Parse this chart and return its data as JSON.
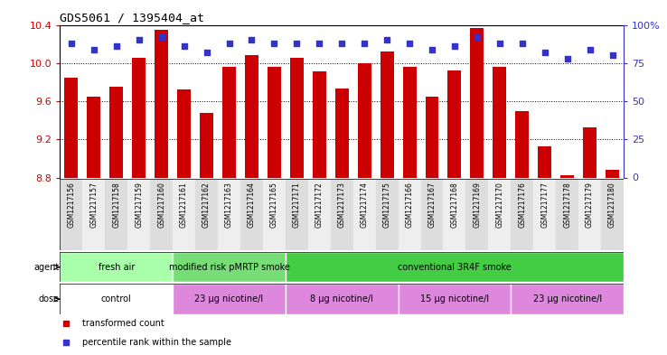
{
  "title": "GDS5061 / 1395404_at",
  "samples": [
    "GSM1217156",
    "GSM1217157",
    "GSM1217158",
    "GSM1217159",
    "GSM1217160",
    "GSM1217161",
    "GSM1217162",
    "GSM1217163",
    "GSM1217164",
    "GSM1217165",
    "GSM1217171",
    "GSM1217172",
    "GSM1217173",
    "GSM1217174",
    "GSM1217175",
    "GSM1217166",
    "GSM1217167",
    "GSM1217168",
    "GSM1217169",
    "GSM1217170",
    "GSM1217176",
    "GSM1217177",
    "GSM1217178",
    "GSM1217179",
    "GSM1217180"
  ],
  "bar_values": [
    9.85,
    9.65,
    9.75,
    10.05,
    10.35,
    9.72,
    9.48,
    9.96,
    10.08,
    9.96,
    10.05,
    9.91,
    9.73,
    10.0,
    10.12,
    9.96,
    9.65,
    9.92,
    10.37,
    9.96,
    9.5,
    9.13,
    8.82,
    9.33,
    8.88
  ],
  "percentile_values": [
    88,
    84,
    86,
    90,
    92,
    86,
    82,
    88,
    90,
    88,
    88,
    88,
    88,
    88,
    90,
    88,
    84,
    86,
    92,
    88,
    88,
    82,
    78,
    84,
    80
  ],
  "ymin": 8.8,
  "ymax": 10.4,
  "yticks": [
    8.8,
    9.2,
    9.6,
    10.0,
    10.4
  ],
  "right_yticks": [
    0,
    25,
    50,
    75,
    100
  ],
  "right_ytick_labels": [
    "0",
    "25",
    "50",
    "75",
    "100%"
  ],
  "bar_color": "#cc0000",
  "percentile_color": "#3333cc",
  "agent_groups": [
    {
      "label": "fresh air",
      "start": 0,
      "end": 5,
      "color": "#aaffaa"
    },
    {
      "label": "modified risk pMRTP smoke",
      "start": 5,
      "end": 10,
      "color": "#77dd77"
    },
    {
      "label": "conventional 3R4F smoke",
      "start": 10,
      "end": 25,
      "color": "#44cc44"
    }
  ],
  "dose_groups": [
    {
      "label": "control",
      "start": 0,
      "end": 5,
      "color": "#ffffff"
    },
    {
      "label": "23 μg nicotine/l",
      "start": 5,
      "end": 10,
      "color": "#dd88dd"
    },
    {
      "label": "8 μg nicotine/l",
      "start": 10,
      "end": 15,
      "color": "#dd88dd"
    },
    {
      "label": "15 μg nicotine/l",
      "start": 15,
      "end": 20,
      "color": "#dd88dd"
    },
    {
      "label": "23 μg nicotine/l",
      "start": 20,
      "end": 25,
      "color": "#dd88dd"
    }
  ],
  "legend_items": [
    {
      "label": "transformed count",
      "color": "#cc0000"
    },
    {
      "label": "percentile rank within the sample",
      "color": "#3333cc"
    }
  ]
}
